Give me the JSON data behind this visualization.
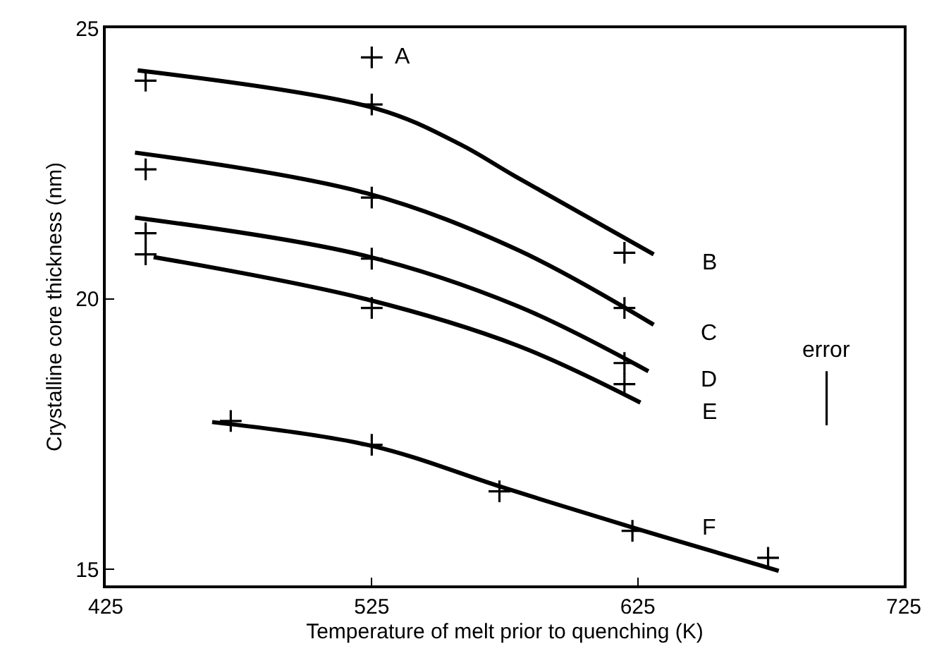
{
  "chart_data": {
    "type": "scatter",
    "xlabel": "Temperature of melt prior to quenching (K)",
    "ylabel": "Crystalline core thickness (nm)",
    "xlim": [
      425,
      725
    ],
    "xticks": [
      425,
      525,
      625,
      725
    ],
    "ylim": [
      14.7,
      25
    ],
    "yticks": [
      15,
      20,
      25
    ],
    "legend": false,
    "series": [
      {
        "name": "A",
        "marker": "cross",
        "color": "#000000",
        "x": [
          525
        ],
        "values": [
          24.46
        ]
      },
      {
        "marker": "cross",
        "color": "#000000",
        "x": [
          440,
          525,
          620
        ],
        "values": [
          24.03,
          23.59,
          20.85
        ]
      },
      {
        "marker": "cross",
        "color": "#000000",
        "x": [
          440,
          525,
          620
        ],
        "values": [
          22.39,
          21.87,
          19.83
        ]
      },
      {
        "marker": "cross",
        "color": "#000000",
        "x": [
          440,
          525,
          620
        ],
        "values": [
          21.21,
          20.74,
          18.81
        ]
      },
      {
        "marker": "cross",
        "color": "#000000",
        "x": [
          440,
          525,
          620
        ],
        "values": [
          20.82,
          19.83,
          18.42
        ]
      },
      {
        "marker": "cross",
        "color": "#000000",
        "x": [
          472,
          525,
          573,
          623,
          674
        ],
        "values": [
          17.74,
          17.3,
          16.44,
          15.71,
          15.21
        ]
      },
      {
        "name": "B",
        "type": "line",
        "marker": "none",
        "color": "#000000",
        "x": [
          437,
          527,
          558,
          579,
          631
        ],
        "values": [
          24.22,
          23.51,
          22.86,
          22.26,
          20.82
        ]
      },
      {
        "name": "C",
        "type": "line",
        "marker": "none",
        "color": "#000000",
        "x": [
          436,
          523,
          580,
          631
        ],
        "values": [
          22.7,
          21.95,
          20.9,
          19.52
        ]
      },
      {
        "name": "D",
        "type": "line",
        "marker": "none",
        "color": "#000000",
        "x": [
          436,
          522,
          580,
          629
        ],
        "values": [
          21.5,
          20.8,
          19.86,
          18.66
        ]
      },
      {
        "name": "E",
        "type": "line",
        "marker": "none",
        "color": "#000000",
        "x": [
          443,
          523,
          580,
          626
        ],
        "values": [
          20.77,
          19.99,
          19.13,
          18.08
        ]
      },
      {
        "name": "F",
        "type": "line",
        "marker": "none",
        "color": "#000000",
        "x": [
          465,
          525,
          575,
          625,
          678
        ],
        "values": [
          17.72,
          17.28,
          16.5,
          15.74,
          14.97
        ]
      },
      {
        "name": "error",
        "type": "line",
        "marker": "none",
        "color": "#000000",
        "x": [
          696,
          696
        ],
        "values": [
          17.66,
          18.66
        ]
      }
    ]
  }
}
